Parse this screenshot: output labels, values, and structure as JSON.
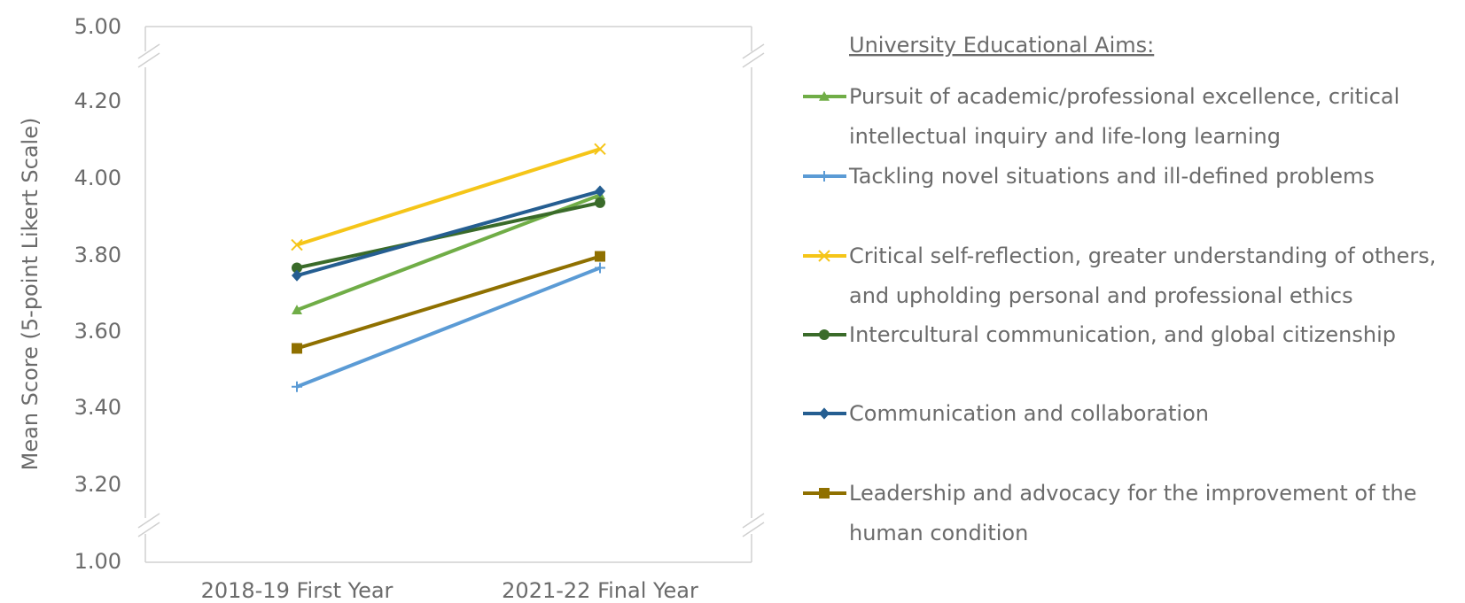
{
  "chart_data": {
    "type": "line",
    "categories": [
      "2018-19 First Year",
      "2021-22 Final Year"
    ],
    "ylabel": "Mean Score (5-point Likert Scale)",
    "y_ticks": [
      "1.00",
      "3.20",
      "3.40",
      "3.60",
      "3.80",
      "4.00",
      "4.20",
      "5.00"
    ],
    "ylim": [
      3.1,
      4.3
    ],
    "axis_break": true,
    "legend_title": "University Educational Aims:",
    "legend_position": "right",
    "series": [
      {
        "name": "Pursuit of academic/professional excellence, critical intellectual inquiry and life-long learning",
        "legend_lines": [
          "Pursuit of academic/professional excellence, critical",
          "intellectual inquiry and life-long learning"
        ],
        "values": [
          3.65,
          3.95
        ],
        "color": "#70AD47",
        "marker": "triangle"
      },
      {
        "name": "Tackling novel situations and ill-defined problems",
        "legend_lines": [
          "Tackling novel situations and ill-defined problems"
        ],
        "values": [
          3.45,
          3.76
        ],
        "color": "#5B9BD5",
        "marker": "plus"
      },
      {
        "name": "Critical self-reflection, greater understanding of others, and upholding personal and professional ethics",
        "legend_lines": [
          "Critical self-reflection, greater understanding of others,",
          "and upholding personal and professional ethics"
        ],
        "values": [
          3.82,
          4.07
        ],
        "color": "#F5C518",
        "marker": "x"
      },
      {
        "name": "Intercultural communication, and global citizenship",
        "legend_lines": [
          "Intercultural communication, and global citizenship"
        ],
        "values": [
          3.76,
          3.93
        ],
        "color": "#3A6B2A",
        "marker": "circle"
      },
      {
        "name": "Communication and collaboration",
        "legend_lines": [
          "Communication and collaboration"
        ],
        "values": [
          3.74,
          3.96
        ],
        "color": "#255E91",
        "marker": "diamond"
      },
      {
        "name": "Leadership and advocacy for the improvement of the human condition",
        "legend_lines": [
          "Leadership and advocacy for the improvement of the",
          "human condition"
        ],
        "values": [
          3.55,
          3.79
        ],
        "color": "#8F7000",
        "marker": "square"
      }
    ]
  }
}
